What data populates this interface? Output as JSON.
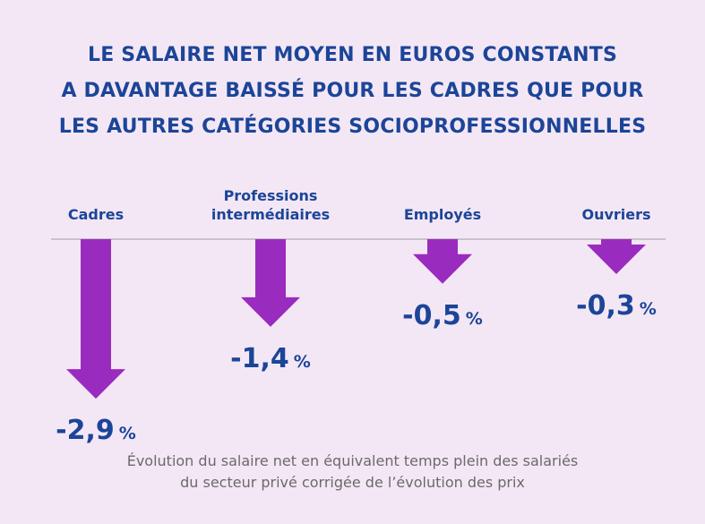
{
  "title_lines": [
    "LE SALAIRE NET MOYEN EN EUROS CONSTANTS",
    "A DAVANTAGE BAISSÉ POUR LES CADRES QUE POUR",
    "LES AUTRES CATÉGORIES SOCIOPROFESSIONNELLES"
  ],
  "footnote_lines": [
    "Évolution du salaire net en équivalent temps plein des salariés",
    "du secteur privé corrigée de l’évolution des prix"
  ],
  "colors": {
    "background": "#f4e7f5",
    "title": "#1b4598",
    "arrow": "#9a2bbf",
    "baseline": "#c7c2c9",
    "footnote": "#6a6a6a"
  },
  "chart_data": {
    "type": "bar",
    "orientation": "vertical-negative-arrows",
    "categories": [
      [
        "Cadres"
      ],
      [
        "Professions",
        "intermédiaires"
      ],
      [
        "Employés"
      ],
      [
        "Ouvriers"
      ]
    ],
    "values": [
      -2.9,
      -1.4,
      -0.5,
      -0.3
    ],
    "value_labels": [
      "-2,9",
      "-1,4",
      "-0,5",
      "-0,3"
    ],
    "unit": "%"
  }
}
